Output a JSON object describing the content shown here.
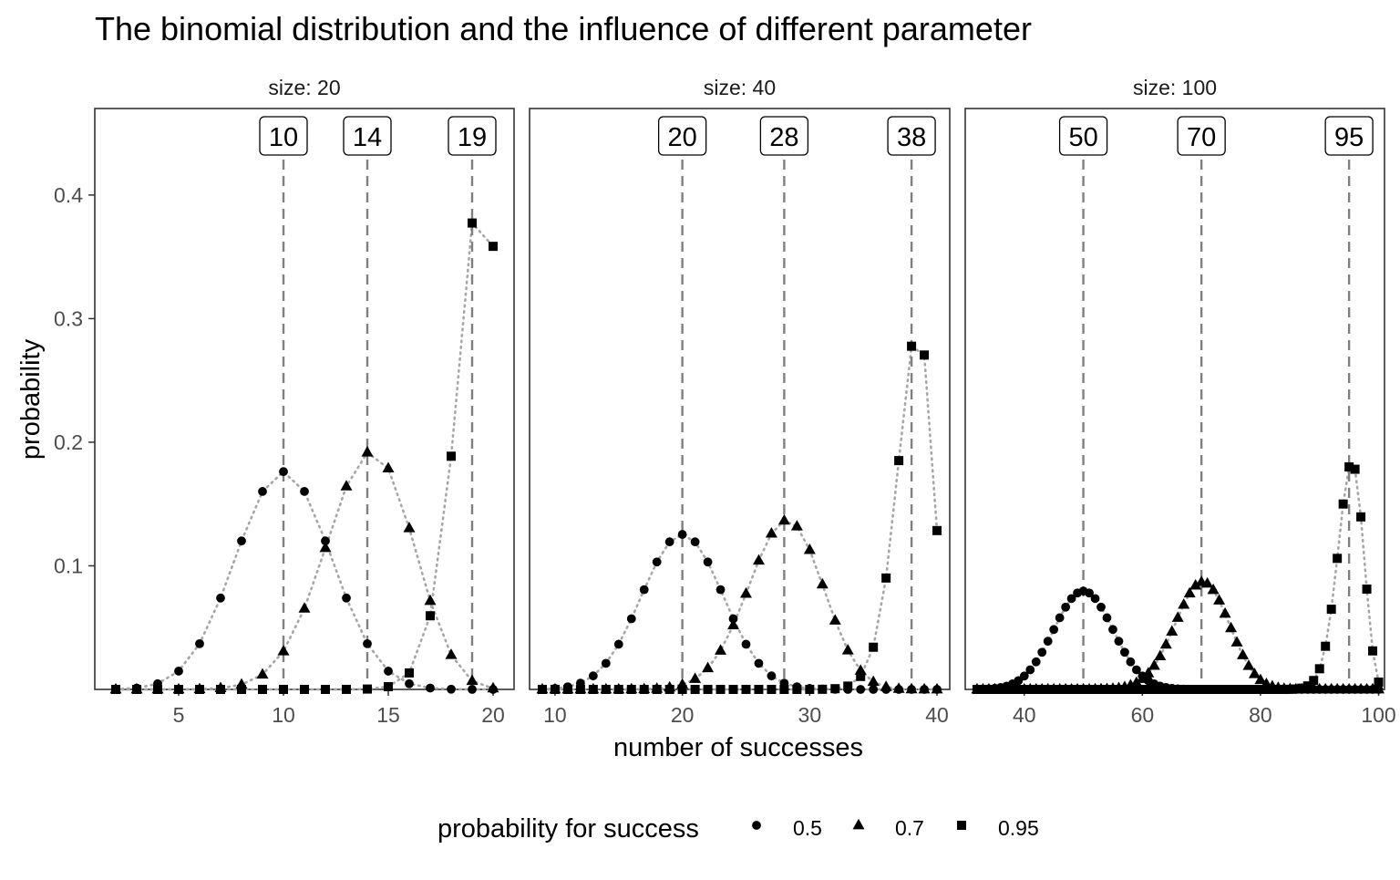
{
  "chart_data": {
    "type": "scatter",
    "title": "The binomial distribution and the influence of different parameter",
    "xlabel": "number of successes",
    "ylabel": "probability",
    "legend": {
      "title": "probability for success",
      "placement": "bottom",
      "entries": [
        {
          "label": "0.5",
          "shape": "circle"
        },
        {
          "label": "0.7",
          "shape": "triangle"
        },
        {
          "label": "0.95",
          "shape": "square"
        }
      ]
    },
    "grid": false,
    "ylim": [
      0,
      0.47
    ],
    "y_ticks": [
      0.1,
      0.2,
      0.3,
      0.4
    ],
    "y_tick_labels": [
      "0.1",
      "0.2",
      "0.3",
      "0.4"
    ],
    "mean_line_style": "dashed",
    "connector_style": "dotted",
    "colors": {
      "points": "#000000",
      "mean_line": "#7f7f7f",
      "connector": "#a6a6a6",
      "panel_border": "#333333",
      "axis_text": "#4d4d4d"
    },
    "panels": [
      {
        "strip_label": "size: 20",
        "size": 20,
        "xlim": [
          1,
          21
        ],
        "x_ticks": [
          5,
          10,
          15,
          20
        ],
        "x_tick_labels": [
          "5",
          "10",
          "15",
          "20"
        ],
        "x_min": 2,
        "mean_labels": [
          "10",
          "14",
          "19"
        ],
        "series": [
          {
            "name": "0.5",
            "p": 0.5,
            "mean": 10
          },
          {
            "name": "0.7",
            "p": 0.7,
            "mean": 14
          },
          {
            "name": "0.95",
            "p": 0.95,
            "mean": 19
          }
        ]
      },
      {
        "strip_label": "size: 40",
        "size": 40,
        "xlim": [
          8,
          41
        ],
        "x_ticks": [
          10,
          20,
          30,
          40
        ],
        "x_tick_labels": [
          "10",
          "20",
          "30",
          "40"
        ],
        "x_min": 9,
        "mean_labels": [
          "20",
          "28",
          "38"
        ],
        "series": [
          {
            "name": "0.5",
            "p": 0.5,
            "mean": 20
          },
          {
            "name": "0.7",
            "p": 0.7,
            "mean": 28
          },
          {
            "name": "0.95",
            "p": 0.95,
            "mean": 38
          }
        ]
      },
      {
        "strip_label": "size: 100",
        "size": 100,
        "xlim": [
          30,
          101
        ],
        "x_ticks": [
          40,
          60,
          80,
          100
        ],
        "x_tick_labels": [
          "40",
          "60",
          "80",
          "100"
        ],
        "x_min": 32,
        "mean_labels": [
          "50",
          "70",
          "95"
        ],
        "series": [
          {
            "name": "0.5",
            "p": 0.5,
            "mean": 50
          },
          {
            "name": "0.7",
            "p": 0.7,
            "mean": 70
          },
          {
            "name": "0.95",
            "p": 0.95,
            "mean": 95
          }
        ]
      }
    ]
  }
}
